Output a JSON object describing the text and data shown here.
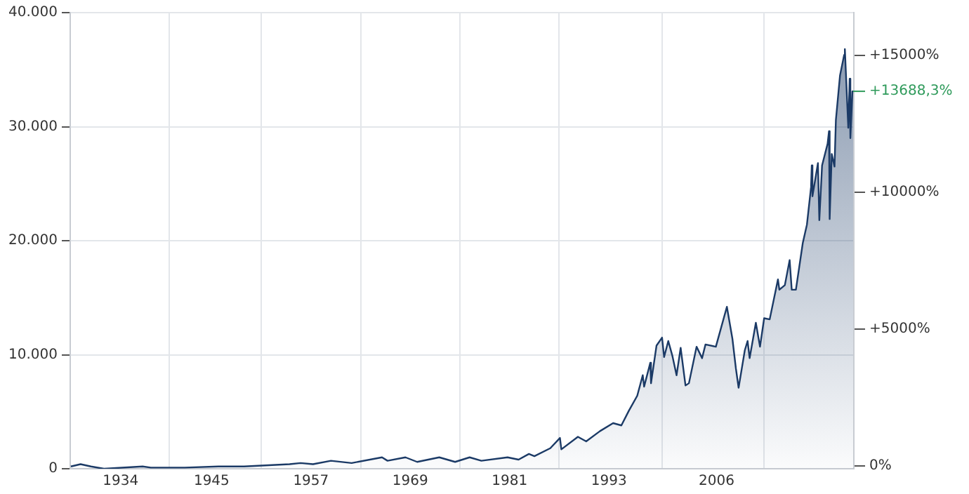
{
  "chart_data": {
    "type": "area",
    "x": [
      "1928-07",
      "1929-09",
      "1930-12",
      "1932-07",
      "1937-03",
      "1938-03",
      "1942-04",
      "1946-05",
      "1949-06",
      "1954-12",
      "1956-04",
      "1957-10",
      "1959-12",
      "1962-06",
      "1966-02",
      "1966-10",
      "1968-12",
      "1970-05",
      "1973-01",
      "1974-12",
      "1976-09",
      "1978-02",
      "1981-04",
      "1982-08",
      "1983-11",
      "1984-07",
      "1986-06",
      "1987-08",
      "1987-10",
      "1989-10",
      "1990-10",
      "1992-06",
      "1994-01",
      "1995-01",
      "1995-12",
      "1996-12",
      "1997-08",
      "1997-10",
      "1998-07",
      "1998-08",
      "1999-04",
      "1999-12",
      "2000-03",
      "2000-09",
      "2001-03",
      "2001-09",
      "2002-03",
      "2002-10",
      "2003-03",
      "2004-02",
      "2004-10",
      "2005-03",
      "2006-06",
      "2007-10",
      "2008-06",
      "2008-11",
      "2009-03",
      "2009-12",
      "2010-04",
      "2010-07",
      "2011-04",
      "2011-10",
      "2012-04",
      "2012-12",
      "2013-12",
      "2014-02",
      "2014-10",
      "2015-05",
      "2015-08",
      "2016-02",
      "2016-12",
      "2017-06",
      "2017-12",
      "2018-01",
      "2018-02",
      "2018-10",
      "2018-12",
      "2019-04",
      "2019-12",
      "2020-02",
      "2020-03",
      "2020-06",
      "2020-10",
      "2020-12",
      "2021-06",
      "2021-12",
      "2022-01",
      "2022-06",
      "2022-08",
      "2022-09",
      "2022-12",
      "2023-01"
    ],
    "series": [
      {
        "color": "#1b3a66",
        "values": [
          200,
          400,
          200,
          0,
          200,
          100,
          100,
          200,
          200,
          400,
          500,
          400,
          700,
          500,
          1000,
          700,
          1000,
          600,
          1000,
          600,
          1000,
          700,
          1000,
          800,
          1300,
          1100,
          1800,
          2700,
          1700,
          2800,
          2400,
          3300,
          4000,
          3800,
          5100,
          6400,
          8200,
          7200,
          9300,
          7500,
          10800,
          11500,
          9800,
          11200,
          9900,
          8200,
          10600,
          7300,
          7500,
          10700,
          9700,
          10900,
          10700,
          14200,
          11400,
          8800,
          7100,
          10400,
          11200,
          9700,
          12800,
          10700,
          13200,
          13100,
          16600,
          15700,
          16100,
          18300,
          15700,
          15700,
          19800,
          21400,
          24700,
          26600,
          23900,
          26800,
          21800,
          26600,
          28500,
          29600,
          21900,
          27600,
          26500,
          30600,
          34500,
          36300,
          36800,
          29900,
          34200,
          29000,
          33100,
          33100
        ]
      }
    ],
    "xlim": [
      "1928-06",
      "2023-02"
    ],
    "xticks": [
      {
        "value": "1934-07",
        "label": "1934"
      },
      {
        "value": "1940-06",
        "label": null
      },
      {
        "value": "1945-07",
        "label": "1945"
      },
      {
        "value": "1951-07",
        "label": null
      },
      {
        "value": "1957-07",
        "label": "1957"
      },
      {
        "value": "1963-07",
        "label": null
      },
      {
        "value": "1969-07",
        "label": "1969"
      },
      {
        "value": "1975-07",
        "label": null
      },
      {
        "value": "1981-07",
        "label": "1981"
      },
      {
        "value": "1987-07",
        "label": null
      },
      {
        "value": "1993-07",
        "label": "1993"
      },
      {
        "value": "1999-12",
        "label": null
      },
      {
        "value": "2006-07",
        "label": "2006"
      },
      {
        "value": "2012-04",
        "label": null
      }
    ],
    "ylim": [
      0,
      40000
    ],
    "yticks": [
      {
        "value": 0,
        "label": "0"
      },
      {
        "value": 10000,
        "label": "10.000"
      },
      {
        "value": 20000,
        "label": "20.000"
      },
      {
        "value": 30000,
        "label": "30.000"
      },
      {
        "value": 40000,
        "label": "40.000"
      }
    ],
    "y2lim": [
      -100,
      16562
    ],
    "y2ticks": [
      {
        "value": 0,
        "label": "0%"
      },
      {
        "value": 5000,
        "label": "+5000%"
      },
      {
        "value": 10000,
        "label": "+10000%"
      },
      {
        "value": 15000,
        "label": "+15000%"
      }
    ],
    "annotations": [
      {
        "text": "+13688,3%",
        "x": "2023-01",
        "y": 33100
      }
    ],
    "grid": true,
    "legend": false
  }
}
